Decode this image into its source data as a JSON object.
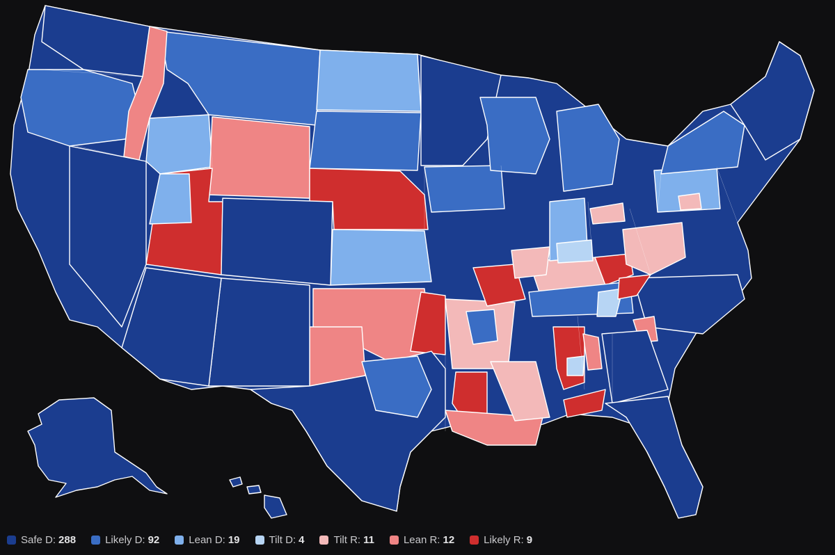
{
  "colors": {
    "safe_d": "#1b3d8f",
    "likely_d": "#3a6dc4",
    "lean_d": "#7fb0ec",
    "tilt_d": "#b7d5f4",
    "tilt_r": "#f3b9b9",
    "lean_r": "#ef8585",
    "likely_r": "#cf2e2e",
    "background": "#0f0f11"
  },
  "legend": [
    {
      "key": "safe_d",
      "label": "Safe D:",
      "count": "288"
    },
    {
      "key": "likely_d",
      "label": "Likely D:",
      "count": "92"
    },
    {
      "key": "lean_d",
      "label": "Lean D:",
      "count": "19"
    },
    {
      "key": "tilt_d",
      "label": "Tilt D:",
      "count": "4"
    },
    {
      "key": "tilt_r",
      "label": "Tilt R:",
      "count": "11"
    },
    {
      "key": "lean_r",
      "label": "Lean R:",
      "count": "12"
    },
    {
      "key": "likely_r",
      "label": "Likely R:",
      "count": "9"
    }
  ]
}
